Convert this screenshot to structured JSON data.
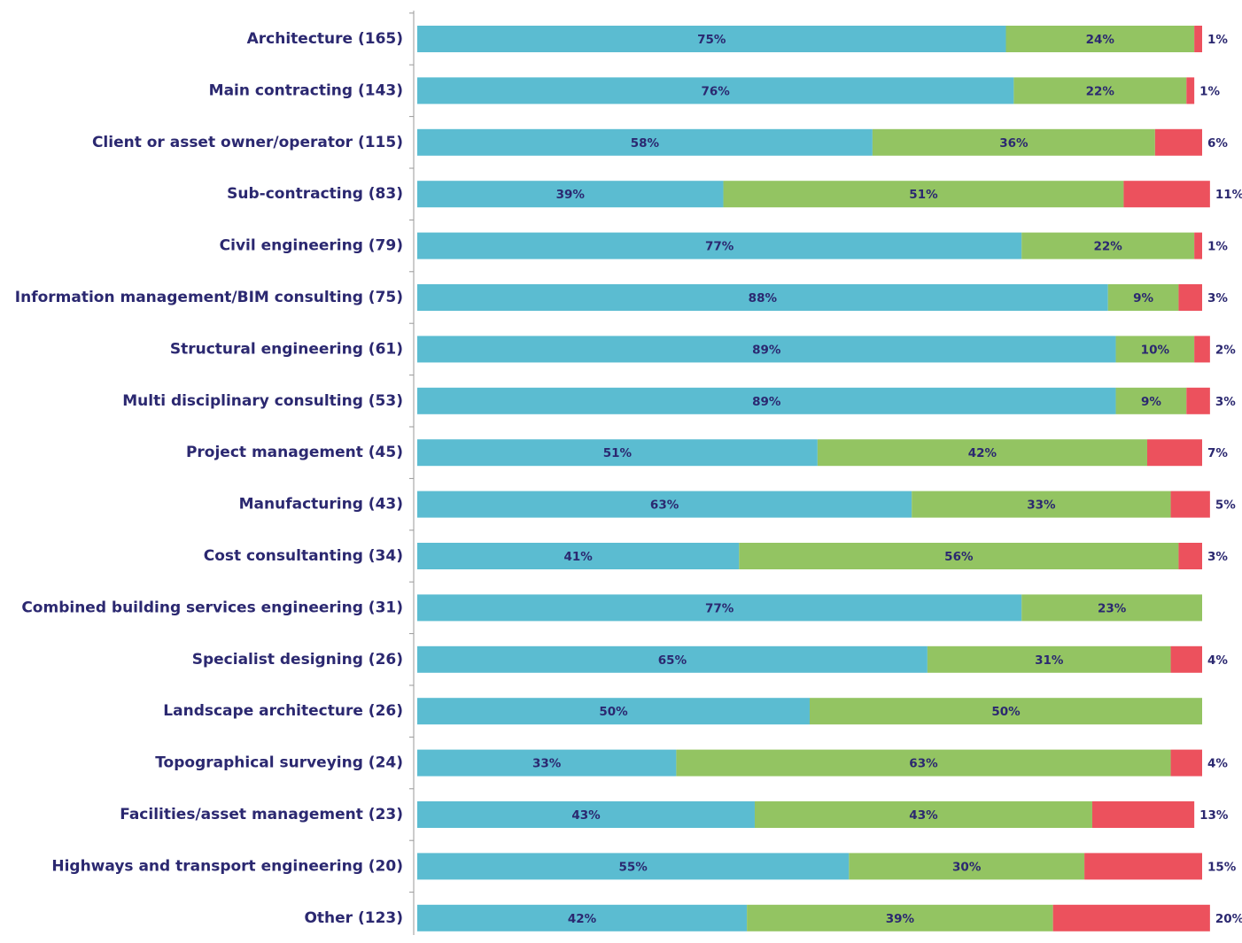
{
  "chart_data": {
    "type": "stacked-barh",
    "categories": [
      "Architecture (165)",
      "Main contracting (143)",
      "Client or asset owner/operator (115)",
      "Sub-contracting (83)",
      "Civil engineering (79)",
      "Information management/BIM consulting (75)",
      "Structural engineering (61)",
      "Multi disciplinary consulting (53)",
      "Project management (45)",
      "Manufacturing (43)",
      "Cost consultanting (34)",
      "Combined building services engineering (31)",
      "Specialist designing (26)",
      "Landscape architecture (26)",
      "Topographical surveying (24)",
      "Facilities/asset management (23)",
      "Highways and transport engineering (20)",
      "Other (123)"
    ],
    "series": [
      {
        "color": "#5bbcd1",
        "values": [
          75,
          76,
          58,
          39,
          77,
          88,
          89,
          89,
          51,
          63,
          41,
          77,
          65,
          50,
          33,
          43,
          55,
          42
        ],
        "value_labels": [
          "75%",
          "76%",
          "58%",
          "39%",
          "77%",
          "88%",
          "89%",
          "89%",
          "51%",
          "63%",
          "41%",
          "77%",
          "65%",
          "50%",
          "33%",
          "43%",
          "55%",
          "42%"
        ]
      },
      {
        "color": "#93c462",
        "values": [
          24,
          22,
          36,
          51,
          22,
          9,
          10,
          9,
          42,
          33,
          56,
          23,
          31,
          50,
          63,
          43,
          30,
          39
        ],
        "value_labels": [
          "24%",
          "22%",
          "36%",
          "51%",
          "22%",
          "9%",
          "10%",
          "9%",
          "42%",
          "33%",
          "56%",
          "23%",
          "31%",
          "50%",
          "63%",
          "43%",
          "30%",
          "39%"
        ]
      },
      {
        "color": "#ec515d",
        "values": [
          1,
          1,
          6,
          11,
          1,
          3,
          2,
          3,
          7,
          5,
          3,
          0,
          4,
          0,
          4,
          13,
          15,
          20
        ],
        "value_labels": [
          "1%",
          "1%",
          "6%",
          "11%",
          "1%",
          "3%",
          "2%",
          "3%",
          "7%",
          "5%",
          "3%",
          null,
          "4%",
          null,
          "4%",
          "13%",
          "15%",
          "20%"
        ]
      }
    ],
    "xlim": [
      0,
      100
    ]
  }
}
